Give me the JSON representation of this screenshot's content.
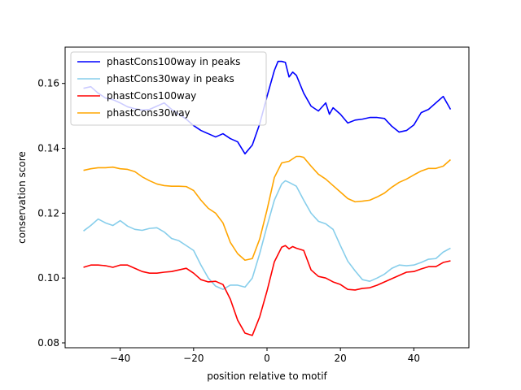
{
  "chart_data": {
    "type": "line",
    "title": "",
    "xlabel": "position relative to motif",
    "ylabel": "conservation score",
    "xlim": [
      -55,
      55
    ],
    "ylim": [
      0.0785,
      0.1712
    ],
    "xticks": [
      -40,
      -20,
      0,
      20,
      40
    ],
    "xtick_labels": [
      "−40",
      "−20",
      "0",
      "20",
      "40"
    ],
    "yticks": [
      0.08,
      0.1,
      0.12,
      0.14,
      0.16
    ],
    "ytick_labels": [
      "0.08",
      "0.10",
      "0.12",
      "0.14",
      "0.16"
    ],
    "grid": false,
    "legend_position": "top-left",
    "series": [
      {
        "name": "phastCons100way in peaks",
        "color": "#0000ff",
        "points": [
          [
            -50,
            0.1585
          ],
          [
            -48,
            0.159
          ],
          [
            -46,
            0.157
          ],
          [
            -44,
            0.1555
          ],
          [
            -42,
            0.155
          ],
          [
            -40,
            0.154
          ],
          [
            -38,
            0.1528
          ],
          [
            -36,
            0.1522
          ],
          [
            -34,
            0.1518
          ],
          [
            -32,
            0.152
          ],
          [
            -30,
            0.153
          ],
          [
            -28,
            0.154
          ],
          [
            -26,
            0.152
          ],
          [
            -24,
            0.1505
          ],
          [
            -22,
            0.149
          ],
          [
            -20,
            0.147
          ],
          [
            -18,
            0.1455
          ],
          [
            -16,
            0.1445
          ],
          [
            -14,
            0.1435
          ],
          [
            -12,
            0.1445
          ],
          [
            -10,
            0.143
          ],
          [
            -8,
            0.142
          ],
          [
            -6,
            0.1383
          ],
          [
            -4,
            0.141
          ],
          [
            -2,
            0.1475
          ],
          [
            0,
            0.156
          ],
          [
            2,
            0.164
          ],
          [
            3,
            0.1668
          ],
          [
            4,
            0.1668
          ],
          [
            5,
            0.1665
          ],
          [
            6,
            0.162
          ],
          [
            7,
            0.1635
          ],
          [
            8,
            0.1625
          ],
          [
            10,
            0.157
          ],
          [
            12,
            0.153
          ],
          [
            14,
            0.1515
          ],
          [
            16,
            0.154
          ],
          [
            17,
            0.1505
          ],
          [
            18,
            0.1525
          ],
          [
            20,
            0.1505
          ],
          [
            22,
            0.1478
          ],
          [
            24,
            0.1487
          ],
          [
            26,
            0.149
          ],
          [
            28,
            0.1495
          ],
          [
            30,
            0.1495
          ],
          [
            32,
            0.1492
          ],
          [
            34,
            0.1468
          ],
          [
            36,
            0.145
          ],
          [
            38,
            0.1455
          ],
          [
            40,
            0.1472
          ],
          [
            42,
            0.151
          ],
          [
            44,
            0.152
          ],
          [
            46,
            0.154
          ],
          [
            48,
            0.156
          ],
          [
            50,
            0.152
          ]
        ]
      },
      {
        "name": "phastCons30way in peaks",
        "color": "#87ceeb",
        "points": [
          [
            -50,
            0.1145
          ],
          [
            -48,
            0.1162
          ],
          [
            -46,
            0.1182
          ],
          [
            -44,
            0.117
          ],
          [
            -42,
            0.1162
          ],
          [
            -40,
            0.1177
          ],
          [
            -38,
            0.116
          ],
          [
            -36,
            0.115
          ],
          [
            -34,
            0.1147
          ],
          [
            -32,
            0.1153
          ],
          [
            -30,
            0.1155
          ],
          [
            -28,
            0.1142
          ],
          [
            -26,
            0.1122
          ],
          [
            -24,
            0.1115
          ],
          [
            -22,
            0.11
          ],
          [
            -20,
            0.1085
          ],
          [
            -18,
            0.104
          ],
          [
            -16,
            0.1
          ],
          [
            -14,
            0.0975
          ],
          [
            -12,
            0.0965
          ],
          [
            -10,
            0.0978
          ],
          [
            -8,
            0.0978
          ],
          [
            -6,
            0.0972
          ],
          [
            -4,
            0.1
          ],
          [
            -2,
            0.1075
          ],
          [
            0,
            0.116
          ],
          [
            2,
            0.124
          ],
          [
            4,
            0.129
          ],
          [
            5,
            0.13
          ],
          [
            6,
            0.1295
          ],
          [
            8,
            0.1283
          ],
          [
            10,
            0.124
          ],
          [
            12,
            0.12
          ],
          [
            14,
            0.1175
          ],
          [
            16,
            0.1167
          ],
          [
            18,
            0.115
          ],
          [
            20,
            0.11
          ],
          [
            22,
            0.1052
          ],
          [
            24,
            0.1022
          ],
          [
            26,
            0.0995
          ],
          [
            28,
            0.099
          ],
          [
            30,
            0.1
          ],
          [
            32,
            0.1012
          ],
          [
            34,
            0.103
          ],
          [
            36,
            0.104
          ],
          [
            38,
            0.1038
          ],
          [
            40,
            0.104
          ],
          [
            42,
            0.1048
          ],
          [
            44,
            0.1058
          ],
          [
            46,
            0.106
          ],
          [
            48,
            0.108
          ],
          [
            50,
            0.1092
          ]
        ]
      },
      {
        "name": "phastCons100way",
        "color": "#ff0000",
        "points": [
          [
            -50,
            0.1033
          ],
          [
            -48,
            0.104
          ],
          [
            -46,
            0.104
          ],
          [
            -44,
            0.1038
          ],
          [
            -42,
            0.1033
          ],
          [
            -40,
            0.104
          ],
          [
            -38,
            0.104
          ],
          [
            -36,
            0.103
          ],
          [
            -34,
            0.102
          ],
          [
            -32,
            0.1015
          ],
          [
            -30,
            0.1015
          ],
          [
            -28,
            0.1018
          ],
          [
            -26,
            0.102
          ],
          [
            -24,
            0.1025
          ],
          [
            -22,
            0.103
          ],
          [
            -20,
            0.1015
          ],
          [
            -18,
            0.0995
          ],
          [
            -16,
            0.0988
          ],
          [
            -14,
            0.099
          ],
          [
            -12,
            0.098
          ],
          [
            -10,
            0.0935
          ],
          [
            -8,
            0.087
          ],
          [
            -6,
            0.083
          ],
          [
            -4,
            0.0823
          ],
          [
            -2,
            0.088
          ],
          [
            0,
            0.096
          ],
          [
            2,
            0.105
          ],
          [
            4,
            0.1095
          ],
          [
            5,
            0.11
          ],
          [
            6,
            0.109
          ],
          [
            7,
            0.1097
          ],
          [
            8,
            0.1092
          ],
          [
            10,
            0.1085
          ],
          [
            12,
            0.1025
          ],
          [
            14,
            0.1005
          ],
          [
            16,
            0.1
          ],
          [
            18,
            0.0988
          ],
          [
            20,
            0.098
          ],
          [
            22,
            0.0965
          ],
          [
            24,
            0.0963
          ],
          [
            26,
            0.0968
          ],
          [
            28,
            0.097
          ],
          [
            30,
            0.0978
          ],
          [
            32,
            0.0988
          ],
          [
            34,
            0.0998
          ],
          [
            36,
            0.1008
          ],
          [
            38,
            0.1018
          ],
          [
            40,
            0.102
          ],
          [
            42,
            0.1028
          ],
          [
            44,
            0.1035
          ],
          [
            46,
            0.1035
          ],
          [
            48,
            0.1048
          ],
          [
            50,
            0.1053
          ]
        ]
      },
      {
        "name": "phastCons30way",
        "color": "#ffa500",
        "points": [
          [
            -50,
            0.1332
          ],
          [
            -48,
            0.1337
          ],
          [
            -46,
            0.134
          ],
          [
            -44,
            0.134
          ],
          [
            -42,
            0.1342
          ],
          [
            -40,
            0.1337
          ],
          [
            -38,
            0.1335
          ],
          [
            -36,
            0.1328
          ],
          [
            -34,
            0.1312
          ],
          [
            -32,
            0.13
          ],
          [
            -30,
            0.129
          ],
          [
            -28,
            0.1285
          ],
          [
            -26,
            0.1283
          ],
          [
            -24,
            0.1283
          ],
          [
            -22,
            0.1282
          ],
          [
            -20,
            0.127
          ],
          [
            -18,
            0.124
          ],
          [
            -16,
            0.1215
          ],
          [
            -14,
            0.12
          ],
          [
            -12,
            0.117
          ],
          [
            -10,
            0.111
          ],
          [
            -8,
            0.1075
          ],
          [
            -6,
            0.1055
          ],
          [
            -4,
            0.106
          ],
          [
            -2,
            0.112
          ],
          [
            0,
            0.121
          ],
          [
            2,
            0.131
          ],
          [
            4,
            0.1355
          ],
          [
            6,
            0.136
          ],
          [
            8,
            0.1375
          ],
          [
            9,
            0.1375
          ],
          [
            10,
            0.1372
          ],
          [
            12,
            0.1345
          ],
          [
            14,
            0.132
          ],
          [
            16,
            0.1305
          ],
          [
            18,
            0.1285
          ],
          [
            20,
            0.1265
          ],
          [
            22,
            0.1245
          ],
          [
            24,
            0.1235
          ],
          [
            26,
            0.1237
          ],
          [
            28,
            0.124
          ],
          [
            30,
            0.125
          ],
          [
            32,
            0.1262
          ],
          [
            34,
            0.128
          ],
          [
            36,
            0.1295
          ],
          [
            38,
            0.1305
          ],
          [
            40,
            0.1318
          ],
          [
            42,
            0.133
          ],
          [
            44,
            0.1338
          ],
          [
            46,
            0.1338
          ],
          [
            48,
            0.1345
          ],
          [
            50,
            0.1365
          ]
        ]
      }
    ]
  }
}
